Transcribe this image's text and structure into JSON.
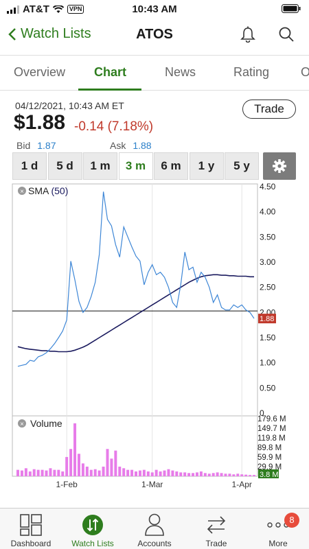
{
  "status": {
    "carrier": "AT&T",
    "vpn": "VPN",
    "time": "10:43 AM"
  },
  "nav": {
    "back_label": "Watch Lists",
    "title": "ATOS"
  },
  "tabs": [
    "Overview",
    "Chart",
    "News",
    "Rating",
    "O"
  ],
  "quote": {
    "datetime": "04/12/2021, 10:43 AM ET",
    "price": "$1.88",
    "change": "-0.14 (7.18%)",
    "bid_label": "Bid",
    "bid": "1.87",
    "ask_label": "Ask",
    "ask": "1.88",
    "trade_label": "Trade"
  },
  "ranges": [
    "1 d",
    "5 d",
    "1 m",
    "3 m",
    "6 m",
    "1 y",
    "5 y"
  ],
  "active_range": "3 m",
  "colors": {
    "accent": "#2e7d1e",
    "negative": "#c0392b",
    "bid_ask": "#2a7fc9",
    "price_line": "#3d86d6",
    "sma_line": "#1a1a5e",
    "volume_bar": "#e77ce9",
    "last_tag": "#c0392b",
    "vol_tag": "#2e7d1e"
  },
  "chart_data": {
    "type": "line",
    "indicator_label": "SMA",
    "indicator_period": "(50)",
    "y_ticks": [
      "4.50",
      "4.00",
      "3.50",
      "3.00",
      "2.50",
      "2.00",
      "1.50",
      "1.00",
      "0.50",
      "0"
    ],
    "ylim": [
      0,
      4.5
    ],
    "x_tick_labels": [
      "1-Feb",
      "1-Mar",
      "1-Apr"
    ],
    "last_price_tag": "1.88",
    "reference_line": 2.03,
    "price": [
      0.93,
      0.95,
      0.97,
      1.05,
      1.03,
      1.12,
      1.15,
      1.2,
      1.28,
      1.38,
      1.5,
      1.63,
      1.85,
      3.02,
      2.65,
      2.22,
      2.0,
      2.1,
      2.32,
      2.6,
      3.15,
      4.4,
      3.85,
      3.72,
      3.35,
      3.1,
      3.7,
      3.5,
      3.3,
      3.12,
      3.02,
      2.55,
      2.8,
      2.95,
      2.75,
      2.8,
      2.7,
      2.5,
      2.2,
      2.1,
      2.55,
      3.2,
      2.85,
      2.9,
      2.6,
      2.8,
      2.7,
      2.5,
      2.2,
      2.35,
      2.1,
      2.05,
      2.05,
      2.15,
      2.1,
      2.15,
      2.05,
      2.0,
      1.88
    ],
    "sma": [
      1.32,
      1.3,
      1.28,
      1.27,
      1.26,
      1.25,
      1.24,
      1.24,
      1.23,
      1.23,
      1.22,
      1.22,
      1.22,
      1.23,
      1.25,
      1.28,
      1.31,
      1.35,
      1.4,
      1.45,
      1.5,
      1.55,
      1.6,
      1.65,
      1.7,
      1.75,
      1.8,
      1.85,
      1.9,
      1.95,
      2.0,
      2.05,
      2.1,
      2.15,
      2.2,
      2.25,
      2.3,
      2.35,
      2.4,
      2.45,
      2.5,
      2.55,
      2.6,
      2.64,
      2.68,
      2.71,
      2.73,
      2.74,
      2.75,
      2.75,
      2.74,
      2.74,
      2.73,
      2.73,
      2.72,
      2.72,
      2.72,
      2.71,
      2.71
    ],
    "volume_label": "Volume",
    "volume_ticks": [
      "179.6 M",
      "149.7 M",
      "119.8 M",
      "89.8 M",
      "59.9 M",
      "29.9 M"
    ],
    "volume_last_tag": "3.8 M",
    "volume": [
      20,
      18,
      25,
      15,
      22,
      20,
      20,
      18,
      25,
      20,
      20,
      15,
      60,
      85,
      165,
      70,
      40,
      30,
      20,
      22,
      18,
      30,
      85,
      55,
      80,
      30,
      25,
      20,
      20,
      15,
      18,
      20,
      15,
      12,
      20,
      15,
      18,
      22,
      18,
      15,
      12,
      12,
      10,
      10,
      12,
      15,
      10,
      8,
      10,
      12,
      10,
      8,
      8,
      6,
      8,
      6,
      5,
      4,
      4
    ]
  },
  "bottom_nav": {
    "items": [
      "Dashboard",
      "Watch Lists",
      "Accounts",
      "Trade",
      "More"
    ],
    "badge": "8"
  }
}
